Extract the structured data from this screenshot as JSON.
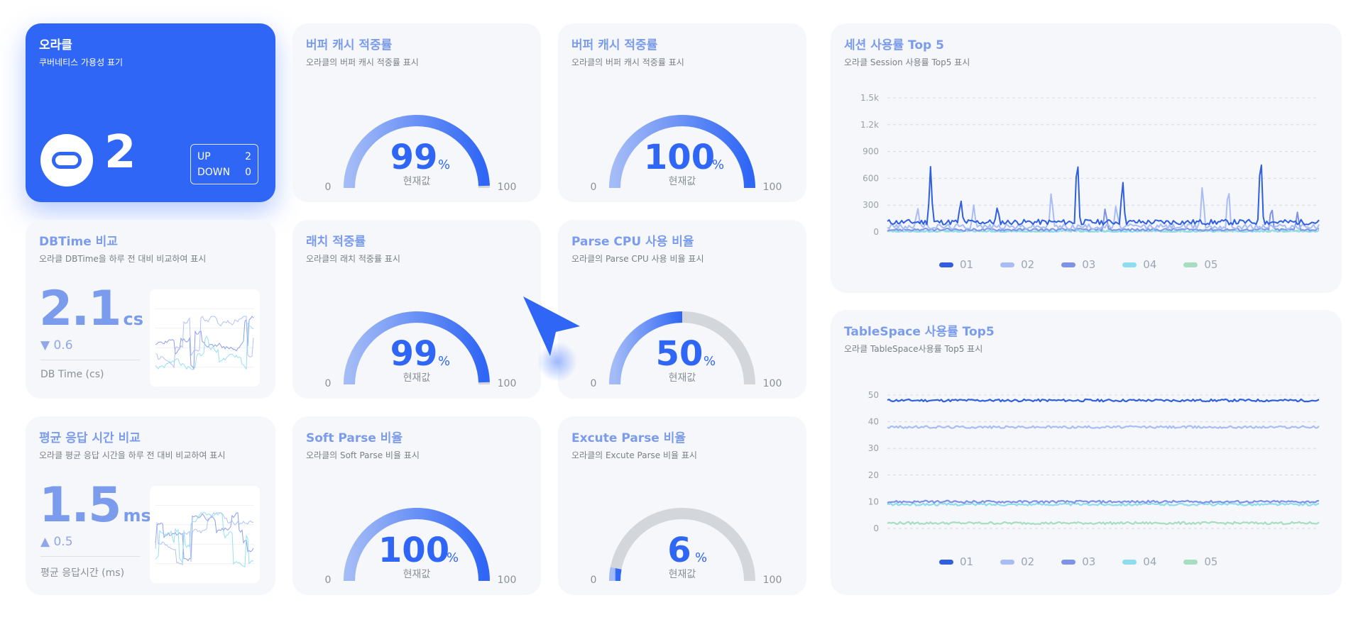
{
  "hero": {
    "title": "오라클",
    "subtitle": "쿠버네티스 가용성 표기",
    "count": "2",
    "icon": "oracle-ring-icon",
    "status": [
      {
        "label": "UP",
        "value": "2"
      },
      {
        "label": "DOWN",
        "value": "0"
      }
    ]
  },
  "gauges": [
    {
      "id": "buffer1",
      "title": "버퍼 캐시 적중률",
      "subtitle": "오라클의 버퍼 캐시 적중률 표시",
      "value": 99,
      "display": "99",
      "unit": "%",
      "caption": "현재값",
      "min": "0",
      "max": "100"
    },
    {
      "id": "buffer2",
      "title": "버퍼 캐시 적중률",
      "subtitle": "오라클의 버퍼 캐시 적중률 표시",
      "value": 100,
      "display": "100",
      "unit": "%",
      "caption": "현재값",
      "min": "0",
      "max": "100"
    },
    {
      "id": "latch",
      "title": "래치 적중률",
      "subtitle": "오라클의 래치 적중률 표시",
      "value": 99,
      "display": "99",
      "unit": "%",
      "caption": "현재값",
      "min": "0",
      "max": "100"
    },
    {
      "id": "parsecpu",
      "title": "Parse CPU 사용 비율",
      "subtitle": "오라클의 Parse CPU 사용 비율 표시",
      "value": 50,
      "display": "50",
      "unit": "%",
      "caption": "현재값",
      "min": "0",
      "max": "100"
    },
    {
      "id": "softparse",
      "title": "Soft Parse 비율",
      "subtitle": "오라클의 Soft Parse 비율 표시",
      "value": 100,
      "display": "100",
      "unit": "%",
      "caption": "현재값",
      "min": "0",
      "max": "100"
    },
    {
      "id": "excute",
      "title": "Excute Parse 비율",
      "subtitle": "오라클의 Excute Parse 비율 표시",
      "value": 6,
      "display": "6",
      "unit": "%",
      "caption": "현재값",
      "min": "0",
      "max": "100"
    }
  ],
  "dbtime": {
    "title": "DBTime 비교",
    "subtitle": "오라클 DBTime을 하루 전 대비 비교하여 표시",
    "value": "2.1",
    "unit": "cs",
    "delta": "▼ 0.6",
    "label": "DB Time (cs)"
  },
  "response": {
    "title": "평균 응답 시간 비교",
    "subtitle": "오라클 평균 응답 시간을 하루 전 대비 비교하여 표시",
    "value": "1.5",
    "unit": "ms",
    "delta": "▲ 0.5",
    "label": "평균 응답시간 (ms)"
  },
  "colors": {
    "accent": "#2f66f5",
    "gauge_track": "#d3d6db",
    "s01": "#2f5fe0",
    "s02": "#a8bdf5",
    "s03": "#7f93e6",
    "s04": "#8edcef",
    "s05": "#a7ddc0"
  },
  "session_chart": {
    "title": "세션 사용률 Top 5",
    "subtitle": "오라클 Session 사용률 Top5 표시",
    "yticks": [
      "0",
      "300",
      "600",
      "900",
      "1.2k",
      "1.5k"
    ],
    "legend": [
      "01",
      "02",
      "03",
      "04",
      "05"
    ]
  },
  "tablespace_chart": {
    "title": "TableSpace 사용률 Top5",
    "subtitle": "오라클 TableSpace사용률 Top5 표시",
    "yticks": [
      "0",
      "10",
      "20",
      "30",
      "40",
      "50"
    ],
    "legend": [
      "01",
      "02",
      "03",
      "04",
      "05"
    ]
  },
  "chart_data": [
    {
      "type": "line",
      "title": "세션 사용률 Top 5",
      "ylim": [
        0,
        1500
      ],
      "grid": true,
      "legend_position": "bottom",
      "series": [
        {
          "name": "01",
          "baseline": 110,
          "spikes": [
            [
              0.1,
              730
            ],
            [
              0.17,
              380
            ],
            [
              0.255,
              290
            ],
            [
              0.44,
              950
            ],
            [
              0.545,
              620
            ],
            [
              0.865,
              980
            ]
          ]
        },
        {
          "name": "02",
          "baseline": 60,
          "spikes": [
            [
              0.07,
              290
            ],
            [
              0.2,
              300
            ],
            [
              0.38,
              480
            ],
            [
              0.53,
              320
            ],
            [
              0.73,
              560
            ],
            [
              0.79,
              560
            ]
          ]
        },
        {
          "name": "03",
          "baseline": 25,
          "spikes": [
            [
              0.505,
              290
            ],
            [
              0.89,
              320
            ],
            [
              0.95,
              220
            ]
          ]
        },
        {
          "name": "04",
          "baseline": 8,
          "spikes": []
        },
        {
          "name": "05",
          "baseline": 12,
          "spikes": []
        }
      ]
    },
    {
      "type": "line",
      "title": "TableSpace 사용률 Top5",
      "ylim": [
        0,
        50
      ],
      "grid": true,
      "legend_position": "bottom",
      "series": [
        {
          "name": "01",
          "level": 48
        },
        {
          "name": "02",
          "level": 38
        },
        {
          "name": "03",
          "level": 10
        },
        {
          "name": "04",
          "level": 9
        },
        {
          "name": "05",
          "level": 2
        }
      ]
    }
  ]
}
